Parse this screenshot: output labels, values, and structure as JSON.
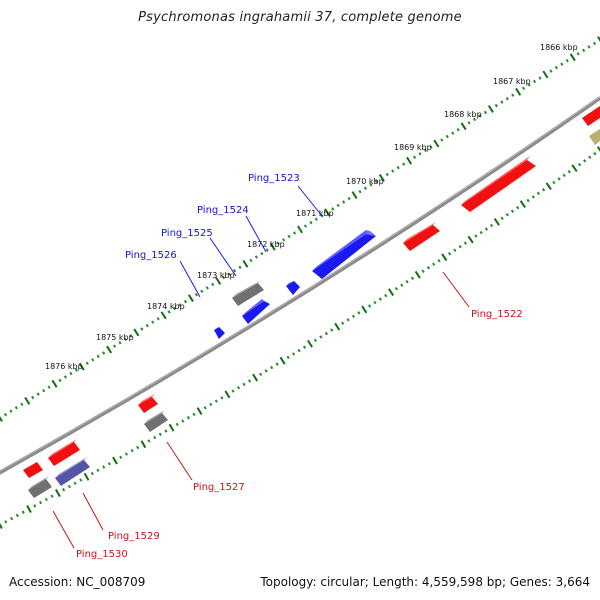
{
  "title": "Psychromonas ingrahamii 37, complete genome",
  "footer": {
    "accession": "Accession: NC_008709",
    "summary": "Topology: circular; Length: 4,559,598 bp; Genes: 3,664"
  },
  "colors": {
    "backbone": "#8c8c8c",
    "tick_major": "#0f6e0f",
    "tick_minor": "#2a8a2a",
    "forward_gene": "#1a1af0",
    "reverse_gene": "#f01010",
    "other_feature": "#707070",
    "rna_feature": "#5555a8",
    "misc_feature": "#b8b070"
  },
  "scale_labels": [
    "1866 kbp",
    "1867 kbp",
    "1868 kbp",
    "1869 kbp",
    "1870 kbp",
    "1871 kbp",
    "1872 kbp",
    "1873 kbp",
    "1874 kbp",
    "1875 kbp",
    "1876 kbp"
  ],
  "gene_labels": [
    {
      "name": "Ping_1523",
      "strand": "forward"
    },
    {
      "name": "Ping_1524",
      "strand": "forward"
    },
    {
      "name": "Ping_1525",
      "strand": "forward"
    },
    {
      "name": "Ping_1526",
      "strand": "forward"
    },
    {
      "name": "Ping_1522",
      "strand": "reverse"
    },
    {
      "name": "Ping_1527",
      "strand": "reverse"
    },
    {
      "name": "Ping_1529",
      "strand": "reverse"
    },
    {
      "name": "Ping_1530",
      "strand": "reverse"
    }
  ]
}
